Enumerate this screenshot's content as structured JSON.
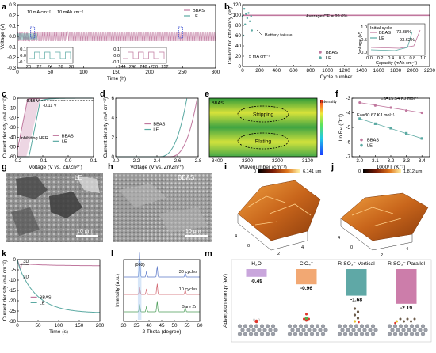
{
  "chart_data": [
    {
      "panel": "a",
      "type": "line",
      "xlabel": "Time (h)",
      "ylabel": "Voltage (V)",
      "xlim": [
        0,
        300
      ],
      "ylim": [
        -0.3,
        0.3
      ],
      "x_ticks": [
        "0",
        "50",
        "100",
        "150",
        "200",
        "250",
        "300"
      ],
      "y_ticks": [
        "-0.3",
        "-0.2",
        "-0.1",
        "0.0",
        "0.1",
        "0.2",
        "0.3"
      ],
      "annotations": [
        "10 mA cm⁻²",
        "10 mAh cm⁻²"
      ],
      "series": [
        {
          "name": "BBAS",
          "color": "#c0779e",
          "amplitude": 0.045
        },
        {
          "name": "LE",
          "color": "#5aa9a2",
          "amplitude": 0.03,
          "end": 30
        }
      ],
      "insets": [
        {
          "x_ticks": [
            "20",
            "22",
            "24",
            "26",
            "28"
          ],
          "y_ticks": [
            "0.1",
            "0.0",
            "-0.1"
          ]
        },
        {
          "x_ticks": [
            "244",
            "246",
            "248",
            "250",
            "252"
          ],
          "y_ticks": [
            "0.1",
            "0.0",
            "-0.1"
          ]
        }
      ]
    },
    {
      "panel": "b",
      "type": "scatter",
      "xlabel": "Cycle number",
      "ylabel": "Coulombic efficiency (%)",
      "xlim": [
        0,
        2200
      ],
      "ylim": [
        0,
        120
      ],
      "x_ticks": [
        "0",
        "200",
        "400",
        "600",
        "800",
        "1000",
        "1200",
        "1400",
        "1600",
        "1800",
        "2000",
        "2200"
      ],
      "y_ticks": [
        "0",
        "20",
        "40",
        "60",
        "80",
        "100",
        "120"
      ],
      "annotations": [
        "Average CE = 99.6%",
        "Battery failure",
        "5 mA cm⁻²"
      ],
      "series": [
        {
          "name": "BBAS",
          "color": "#c0779e",
          "value": 99.6,
          "end": 2200
        },
        {
          "name": "LE",
          "color": "#5aa9a2",
          "value": 99,
          "end": 110
        }
      ],
      "inset": {
        "title": "Initial cycle",
        "xlabel": "Capacity (mAh cm⁻²)",
        "ylabel": "Voltage (V)",
        "x_ticks": [
          "0.0",
          "0.2",
          "0.4",
          "0.6",
          "0.8",
          "1.0"
        ],
        "y_ticks": [
          "0.0",
          "0.5",
          "1.0"
        ],
        "labels": [
          "73.38%",
          "93.62%"
        ],
        "series": [
          {
            "name": "BBAS",
            "color": "#c0779e"
          },
          {
            "name": "LE",
            "color": "#5aa9a2"
          }
        ]
      }
    },
    {
      "panel": "c",
      "type": "line",
      "xlabel": "Voltage (V vs. Zn/Zn²⁺)",
      "ylabel": "Current density (mA cm⁻²)",
      "xlim": [
        -0.2,
        0.1
      ],
      "ylim": [
        -60,
        0
      ],
      "x_ticks": [
        "-0.2",
        "-0.1",
        "0.0",
        "0.1"
      ],
      "y_ticks": [
        "0",
        "-10",
        "-20",
        "-30",
        "-40",
        "-50",
        "-60"
      ],
      "annotations": [
        "-0.16 V",
        "-0.11 V",
        "Inhibiting HER"
      ],
      "series": [
        {
          "name": "BBAS",
          "color": "#c0779e",
          "onset": -0.16
        },
        {
          "name": "LE",
          "color": "#5aa9a2",
          "onset": -0.11
        }
      ]
    },
    {
      "panel": "d",
      "type": "line",
      "xlabel": "Voltage (V vs. Zn/Zn²⁺)",
      "ylabel": "Current density (mA cm⁻²)",
      "xlim": [
        2.0,
        2.8
      ],
      "ylim": [
        0,
        6
      ],
      "x_ticks": [
        "2.0",
        "2.2",
        "2.4",
        "2.6",
        "2.8"
      ],
      "y_ticks": [
        "0",
        "2",
        "4",
        "6"
      ],
      "series": [
        {
          "name": "BBAS",
          "color": "#c0779e",
          "onset": 2.52
        },
        {
          "name": "LE",
          "color": "#5aa9a2",
          "onset": 2.42
        }
      ]
    },
    {
      "panel": "e",
      "type": "heatmap",
      "title": "BBAS",
      "xlabel": "Wavenumber (cm⁻¹)",
      "x_ticks": [
        "3400",
        "3300",
        "3200",
        "3100"
      ],
      "regions": [
        "Stripping",
        "Plating"
      ],
      "colorbar_label": "Intensity"
    },
    {
      "panel": "f",
      "type": "scatter",
      "xlabel": "1000/T (K⁻¹)",
      "ylabel": "Ln Rₕₗ (Ω⁻¹)",
      "xlim": [
        2.95,
        3.45
      ],
      "ylim": [
        -7,
        -3
      ],
      "x_ticks": [
        "3.0",
        "3.1",
        "3.2",
        "3.3",
        "3.4"
      ],
      "y_ticks": [
        "-3",
        "-4",
        "-5",
        "-6",
        "-7"
      ],
      "annotations": [
        "Ea=15.54 KJ mol⁻¹",
        "Ea=30.67 KJ mol⁻¹"
      ],
      "series": [
        {
          "name": "BBAS",
          "color": "#c0779e",
          "x": [
            3.0,
            3.1,
            3.2,
            3.3,
            3.4
          ],
          "y": [
            -3.3,
            -3.5,
            -3.65,
            -3.85,
            -4.0
          ]
        },
        {
          "name": "LE",
          "color": "#5aa9a2",
          "x": [
            3.0,
            3.1,
            3.2,
            3.3,
            3.4
          ],
          "y": [
            -4.4,
            -4.75,
            -5.05,
            -5.4,
            -5.75
          ]
        }
      ]
    },
    {
      "panel": "g",
      "type": "image",
      "label": "LE",
      "scale": "10 μm"
    },
    {
      "panel": "h",
      "type": "image",
      "label": "BBAS",
      "scale": "10 μm"
    },
    {
      "panel": "i",
      "type": "image",
      "colorbar_min": "0",
      "colorbar_max": "6.141 μm",
      "x_ticks": [
        "0",
        "2",
        "4"
      ],
      "y_ticks": [
        "4",
        "2",
        "0"
      ]
    },
    {
      "panel": "j",
      "type": "image",
      "colorbar_min": "0",
      "colorbar_max": "1.812 μm",
      "x_ticks": [
        "0",
        "2",
        "4"
      ],
      "y_ticks": [
        "4",
        "2",
        "0"
      ]
    },
    {
      "panel": "k",
      "type": "line",
      "xlabel": "Time (s)",
      "ylabel": "Current density (mA cm⁻²)",
      "xlim": [
        0,
        200
      ],
      "ylim": [
        -30,
        0
      ],
      "x_ticks": [
        "0",
        "50",
        "100",
        "150",
        "200"
      ],
      "y_ticks": [
        "0",
        "-5",
        "-10",
        "-15",
        "-20",
        "-25",
        "-30"
      ],
      "annotations": [
        "3D",
        "2D"
      ],
      "series": [
        {
          "name": "BBAS",
          "color": "#c0779e",
          "final": -3
        },
        {
          "name": "LE",
          "color": "#5aa9a2",
          "final": -26
        }
      ]
    },
    {
      "panel": "l",
      "type": "line",
      "xlabel": "2 Theta (degree)",
      "ylabel": "Intensity (a.u.)",
      "xlim": [
        30,
        60
      ],
      "x_ticks": [
        "30",
        "35",
        "40",
        "45",
        "50",
        "55",
        "60"
      ],
      "annotations": [
        "(002)"
      ],
      "series": [
        {
          "name": "30 cycles",
          "color": "#5b78c8"
        },
        {
          "name": "10 cycles",
          "color": "#d0606a"
        },
        {
          "name": "Bare Zn",
          "color": "#4d9e5a"
        }
      ]
    },
    {
      "panel": "m",
      "type": "bar",
      "ylabel": "Adsorption energy (eV)",
      "categories": [
        "H₂O",
        "ClO₄⁻",
        "R-SO₃⁻-Vertical",
        "R-SO₃⁻-Parallel"
      ],
      "values": [
        -0.49,
        -0.96,
        -1.68,
        -2.19
      ],
      "value_labels": [
        "-0.49",
        "-0.96",
        "-1.68",
        "-2.19"
      ],
      "colors": [
        "#c9a6dc",
        "#f2a873",
        "#5fa8a6",
        "#cc7daa"
      ]
    }
  ]
}
